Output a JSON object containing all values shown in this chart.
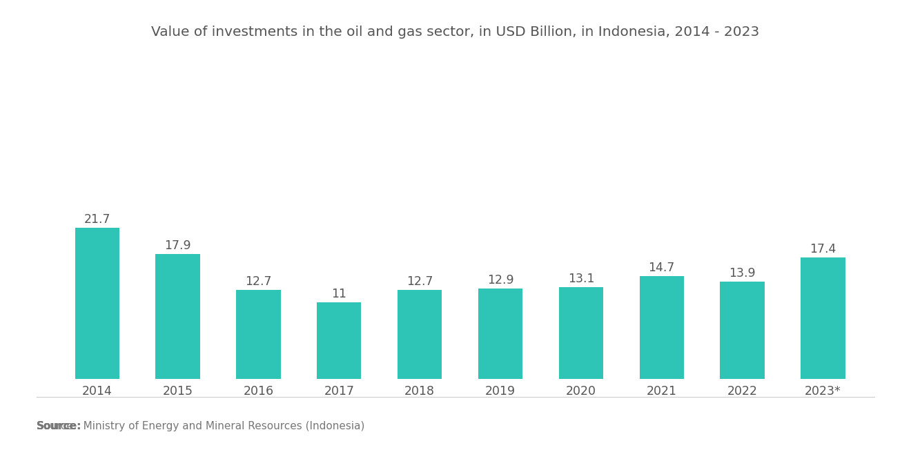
{
  "title": "Value of investments in the oil and gas sector, in USD Billion, in Indonesia, 2014 - 2023",
  "categories": [
    "2014",
    "2015",
    "2016",
    "2017",
    "2018",
    "2019",
    "2020",
    "2021",
    "2022",
    "2023*"
  ],
  "values": [
    21.7,
    17.9,
    12.7,
    11.0,
    12.7,
    12.9,
    13.1,
    14.7,
    13.9,
    17.4
  ],
  "bar_color": "#2EC4B6",
  "background_color": "#ffffff",
  "title_fontsize": 14.5,
  "label_fontsize": 12.5,
  "tick_fontsize": 12.5,
  "source_bold": "Source:",
  "source_normal": "  Ministry of Energy and Mineral Resources (Indonesia)",
  "source_fontsize": 11,
  "ylim": [
    0,
    28
  ],
  "title_color": "#555555",
  "tick_color": "#555555",
  "label_color": "#555555"
}
